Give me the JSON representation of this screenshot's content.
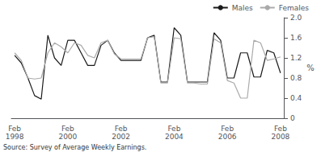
{
  "chart_data": {
    "type": "line",
    "ylabel": "%",
    "annotations": [
      "Source: Survey of Average Weekly Earnings."
    ],
    "categories": [
      "Feb\n1998",
      null,
      null,
      null,
      null,
      null,
      null,
      null,
      "Feb\n2000",
      null,
      null,
      null,
      null,
      null,
      null,
      null,
      "Feb\n2002",
      null,
      null,
      null,
      null,
      null,
      null,
      null,
      "Feb\n2004",
      null,
      null,
      null,
      null,
      null,
      null,
      null,
      "Feb\n2006",
      null,
      null,
      null,
      null,
      null,
      null,
      null,
      "Feb\n2008"
    ],
    "series": [
      {
        "name": "Males",
        "color": "#1a1a1a",
        "values": [
          1.25,
          1.1,
          0.8,
          0.45,
          0.38,
          1.65,
          1.2,
          1.05,
          1.55,
          1.55,
          1.3,
          1.05,
          1.05,
          1.45,
          1.55,
          1.3,
          1.15,
          1.15,
          1.15,
          1.15,
          1.6,
          1.65,
          0.72,
          0.72,
          1.8,
          1.65,
          0.72,
          0.72,
          0.72,
          0.72,
          1.7,
          1.55,
          0.8,
          0.8,
          1.3,
          1.3,
          0.82,
          0.82,
          1.35,
          1.3,
          0.9
        ]
      },
      {
        "name": "Females",
        "color": "#aaaaaa",
        "values": [
          1.3,
          1.15,
          0.8,
          0.78,
          0.8,
          1.3,
          1.5,
          1.42,
          1.3,
          1.5,
          1.45,
          1.25,
          1.2,
          1.5,
          1.55,
          1.28,
          1.18,
          1.18,
          1.18,
          1.18,
          1.6,
          1.62,
          0.7,
          0.7,
          1.6,
          1.58,
          0.7,
          0.7,
          0.68,
          0.68,
          1.58,
          1.5,
          0.75,
          0.7,
          0.4,
          0.4,
          1.55,
          1.5,
          1.15,
          1.18,
          1.22
        ]
      }
    ],
    "ylim": [
      0,
      2.0
    ],
    "yticks": [
      0,
      0.4,
      0.8,
      1.2,
      1.6,
      {
        "value": 2.0,
        "label": "2.0"
      }
    ],
    "grid": false,
    "legend": "upper right"
  }
}
